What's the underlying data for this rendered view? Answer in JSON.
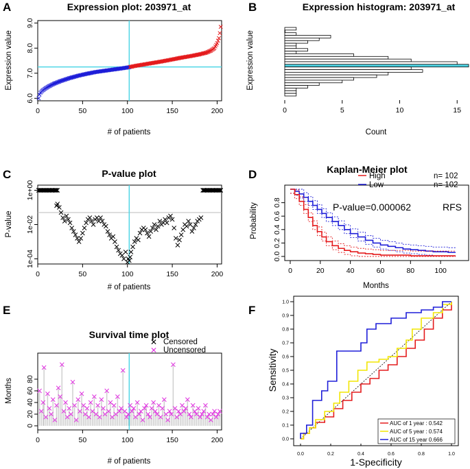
{
  "figure": {
    "panel_labels": [
      "A",
      "B",
      "C",
      "D",
      "E",
      "F"
    ]
  },
  "colors": {
    "cyan": "#4fd6e6",
    "blue": "#1d1dd8",
    "red": "#e41a1c",
    "magenta": "#e033e0",
    "yellow": "#f2e600",
    "gray": "#bbbbbb",
    "hist_fill": "#ffffff"
  },
  "chart_data": [
    {
      "id": "A",
      "type": "scatter",
      "title": "Expression plot:  203971_at",
      "xlabel": "# of patients",
      "ylabel": "Expression value",
      "xlim": [
        0,
        205
      ],
      "ylim": [
        5.9,
        9.1
      ],
      "xticks": [
        0,
        50,
        100,
        150,
        200
      ],
      "yticks": [
        6.0,
        7.0,
        8.0,
        9.0
      ],
      "ytick_labels": [
        "6.0",
        "7.0",
        "8.0",
        "9.0"
      ],
      "n_patients": 204,
      "cutoff_patient": 102,
      "cutoff_value": 7.25,
      "series": [
        {
          "name": "Low",
          "color": "blue",
          "x": [
            1,
            2,
            3,
            5,
            8,
            12,
            18,
            25,
            35,
            45,
            55,
            65,
            75,
            85,
            95,
            102
          ],
          "y": [
            6.0,
            6.15,
            6.22,
            6.3,
            6.38,
            6.47,
            6.58,
            6.68,
            6.8,
            6.9,
            6.98,
            7.05,
            7.1,
            7.15,
            7.2,
            7.24
          ]
        },
        {
          "name": "High",
          "color": "red",
          "x": [
            103,
            110,
            120,
            130,
            140,
            150,
            160,
            170,
            180,
            188,
            193,
            197,
            200,
            202,
            203,
            204
          ],
          "y": [
            7.25,
            7.3,
            7.36,
            7.42,
            7.48,
            7.55,
            7.62,
            7.68,
            7.75,
            7.82,
            7.9,
            8.0,
            8.2,
            8.4,
            8.6,
            8.85
          ]
        }
      ]
    },
    {
      "id": "B",
      "type": "bar",
      "orientation": "horizontal",
      "title": "Expression histogram:  203971_at",
      "xlabel": "Count",
      "ylabel": "Expression value",
      "xlim": [
        0,
        16
      ],
      "xticks": [
        0,
        5,
        10,
        15
      ],
      "bin_counts": [
        1,
        0,
        1,
        4,
        3,
        2,
        1,
        1,
        2,
        1,
        6,
        9,
        11,
        15,
        16,
        11,
        12,
        9,
        8,
        6,
        5,
        3,
        2,
        1,
        1,
        1
      ],
      "highlight_bin": 14,
      "highlight_color": "cyan"
    },
    {
      "id": "C",
      "type": "scatter",
      "title": "P-value plot",
      "xlabel": "# of patients",
      "ylabel": "P-value",
      "xlim": [
        0,
        205
      ],
      "ylim_log10": [
        -4.3,
        0.3
      ],
      "xticks": [
        0,
        50,
        100,
        150,
        200
      ],
      "ytick_labels": [
        "1e-04",
        "1e-02",
        "1e+00"
      ],
      "ytick_log10": [
        -4,
        -2,
        0
      ],
      "significance_line_log10": -1.3,
      "cutoff_patient": 102,
      "points_x": [
        1,
        4,
        8,
        12,
        16,
        20,
        21,
        22,
        24,
        26,
        28,
        30,
        32,
        34,
        36,
        38,
        40,
        42,
        44,
        46,
        48,
        50,
        52,
        54,
        56,
        58,
        60,
        62,
        64,
        66,
        68,
        70,
        72,
        74,
        76,
        78,
        80,
        82,
        84,
        86,
        88,
        90,
        92,
        94,
        96,
        98,
        100,
        101,
        102,
        103,
        104,
        106,
        108,
        110,
        112,
        114,
        116,
        118,
        120,
        122,
        124,
        126,
        128,
        130,
        132,
        134,
        136,
        138,
        140,
        142,
        144,
        146,
        148,
        150,
        152,
        154,
        156,
        158,
        160,
        162,
        164,
        166,
        168,
        170,
        172,
        174,
        176,
        178,
        180,
        182,
        185,
        190,
        195,
        200,
        204
      ],
      "points_log10": [
        0,
        0,
        0,
        0,
        0,
        0,
        -0.9,
        -0.8,
        -1.0,
        -1.3,
        -1.6,
        -1.8,
        -1.5,
        -1.7,
        -1.9,
        -2.2,
        -2.4,
        -2.6,
        -2.8,
        -3.0,
        -2.8,
        -2.5,
        -2.2,
        -1.9,
        -1.7,
        -1.6,
        -1.8,
        -2.0,
        -1.7,
        -1.6,
        -1.8,
        -1.6,
        -1.8,
        -2.0,
        -2.1,
        -2.4,
        -2.6,
        -2.8,
        -2.7,
        -3.0,
        -3.3,
        -3.5,
        -3.7,
        -3.8,
        -4.0,
        -3.6,
        -4.2,
        -4.0,
        -4.1,
        -3.9,
        -3.6,
        -3.3,
        -3.0,
        -2.8,
        -2.9,
        -2.5,
        -2.3,
        -2.2,
        -2.3,
        -2.5,
        -2.7,
        -2.4,
        -2.2,
        -2.0,
        -2.3,
        -2.1,
        -1.8,
        -2.0,
        -1.9,
        -1.7,
        -1.9,
        -1.6,
        -1.5,
        -1.7,
        -2.2,
        -2.8,
        -3.2,
        -2.9,
        -2.6,
        -2.3,
        -2.0,
        -2.1,
        -1.8,
        -2.0,
        -2.4,
        -2.2,
        -2.0,
        -1.8,
        -1.7,
        -1.6,
        0,
        0,
        0,
        0,
        0
      ]
    },
    {
      "id": "D",
      "type": "line",
      "title": "Kaplan-Meier plot",
      "xlabel": "Months",
      "ylabel": "Probability",
      "xlim": [
        0,
        115
      ],
      "ylim": [
        0,
        1
      ],
      "xticks": [
        0,
        20,
        40,
        60,
        80,
        100
      ],
      "yticks": [
        0.0,
        0.2,
        0.4,
        0.6,
        0.8
      ],
      "ytick_labels": [
        "0.0",
        "0.2",
        "0.4",
        "0.6",
        "0.8"
      ],
      "annotation": "P-value=0.000062",
      "annotation2": "RFS",
      "legend": [
        {
          "label": "High",
          "n_text": "n= 102",
          "color": "red"
        },
        {
          "label": "Low",
          "n_text": "n= 102",
          "color": "blue"
        }
      ],
      "series": [
        {
          "name": "Low",
          "color": "blue",
          "x": [
            0,
            3,
            6,
            9,
            12,
            15,
            18,
            21,
            24,
            28,
            32,
            36,
            40,
            45,
            50,
            55,
            60,
            65,
            70,
            75,
            80,
            85,
            90,
            95,
            100,
            105,
            110
          ],
          "y": [
            1.0,
            0.97,
            0.93,
            0.88,
            0.82,
            0.76,
            0.7,
            0.64,
            0.58,
            0.52,
            0.46,
            0.4,
            0.34,
            0.29,
            0.24,
            0.2,
            0.17,
            0.15,
            0.13,
            0.11,
            0.1,
            0.09,
            0.08,
            0.07,
            0.07,
            0.06,
            0.06
          ]
        },
        {
          "name": "High",
          "color": "red",
          "x": [
            0,
            3,
            6,
            9,
            12,
            15,
            18,
            21,
            24,
            28,
            32,
            36,
            40,
            45,
            50,
            55,
            60,
            70,
            80,
            90,
            100,
            110
          ],
          "y": [
            1.0,
            0.92,
            0.82,
            0.7,
            0.58,
            0.46,
            0.37,
            0.29,
            0.22,
            0.16,
            0.12,
            0.09,
            0.07,
            0.05,
            0.04,
            0.03,
            0.02,
            0.02,
            0.01,
            0.01,
            0.01,
            0.01
          ]
        }
      ]
    },
    {
      "id": "E",
      "type": "scatter",
      "title": "Survival time plot",
      "xlabel": "# of patients",
      "ylabel": "Months",
      "xlim": [
        0,
        205
      ],
      "ylim": [
        0,
        120
      ],
      "xticks": [
        0,
        50,
        100,
        150,
        200
      ],
      "yticks": [
        0,
        20,
        40,
        60,
        80
      ],
      "legend": [
        {
          "label": "Censored",
          "color": "black"
        },
        {
          "label": "Uncensored",
          "color": "magenta"
        }
      ],
      "cutoff_patient": 102,
      "points_x": [
        2,
        4,
        6,
        7,
        9,
        11,
        13,
        15,
        17,
        19,
        21,
        23,
        25,
        27,
        29,
        31,
        33,
        35,
        37,
        39,
        41,
        43,
        45,
        47,
        49,
        51,
        53,
        55,
        57,
        59,
        61,
        63,
        65,
        67,
        69,
        71,
        73,
        75,
        77,
        79,
        81,
        83,
        85,
        87,
        89,
        91,
        93,
        95,
        97,
        99,
        101,
        103,
        105,
        107,
        109,
        111,
        113,
        115,
        117,
        119,
        121,
        123,
        125,
        127,
        129,
        131,
        133,
        135,
        137,
        139,
        141,
        143,
        145,
        147,
        149,
        151,
        153,
        155,
        157,
        159,
        161,
        163,
        165,
        167,
        169,
        171,
        173,
        175,
        177,
        179,
        181,
        183,
        185,
        187,
        189,
        191,
        193,
        195,
        197,
        199,
        201,
        203
      ],
      "points_y": [
        60,
        25,
        40,
        100,
        15,
        55,
        30,
        20,
        45,
        10,
        35,
        65,
        50,
        105,
        25,
        40,
        15,
        30,
        20,
        75,
        35,
        10,
        45,
        25,
        55,
        35,
        20,
        30,
        15,
        40,
        25,
        50,
        20,
        35,
        15,
        45,
        30,
        20,
        60,
        25,
        40,
        15,
        35,
        20,
        50,
        25,
        30,
        95,
        25,
        15,
        20,
        35,
        25,
        30,
        15,
        40,
        20,
        25,
        10,
        30,
        35,
        20,
        15,
        30,
        40,
        25,
        20,
        35,
        15,
        30,
        45,
        20,
        10,
        25,
        20,
        105,
        30,
        15,
        25,
        20,
        35,
        25,
        30,
        45,
        20,
        15,
        35,
        25,
        20,
        30,
        15,
        20,
        25,
        35,
        15,
        20,
        10,
        20,
        25,
        15,
        20,
        25
      ]
    },
    {
      "id": "F",
      "type": "line",
      "title": "",
      "xlabel": "1-Specificity",
      "ylabel": "Sensitivity",
      "xlim": [
        0,
        1
      ],
      "ylim": [
        0,
        1
      ],
      "xticks": [
        0.0,
        0.2,
        0.4,
        0.6,
        0.8,
        1.0
      ],
      "yticks": [
        0.0,
        0.1,
        0.2,
        0.3,
        0.4,
        0.5,
        0.6,
        0.7,
        0.8,
        0.9,
        1.0
      ],
      "tick_labels": [
        "0.0",
        "0.1",
        "0.2",
        "0.3",
        "0.4",
        "0.5",
        "0.6",
        "0.7",
        "0.8",
        "0.9",
        "1.0"
      ],
      "legend": [
        {
          "label": "AUC of 1 year : 0.542",
          "color": "red"
        },
        {
          "label": "AUC of 5 year : 0.574",
          "color": "yellow"
        },
        {
          "label": "AUC of 15 year 0.666",
          "color": "blue"
        }
      ],
      "series": [
        {
          "name": "AUC of 1 year",
          "color": "red",
          "x": [
            0,
            0.02,
            0.02,
            0.06,
            0.06,
            0.1,
            0.1,
            0.16,
            0.16,
            0.22,
            0.22,
            0.28,
            0.28,
            0.34,
            0.34,
            0.4,
            0.4,
            0.46,
            0.46,
            0.52,
            0.52,
            0.58,
            0.58,
            0.64,
            0.64,
            0.7,
            0.7,
            0.76,
            0.76,
            0.82,
            0.82,
            0.88,
            0.88,
            0.94,
            0.94,
            1.0,
            1.0
          ],
          "y": [
            0,
            0,
            0.04,
            0.04,
            0.08,
            0.08,
            0.12,
            0.12,
            0.16,
            0.16,
            0.22,
            0.22,
            0.28,
            0.28,
            0.34,
            0.34,
            0.4,
            0.4,
            0.44,
            0.44,
            0.5,
            0.5,
            0.54,
            0.54,
            0.6,
            0.6,
            0.66,
            0.66,
            0.72,
            0.72,
            0.8,
            0.8,
            0.88,
            0.88,
            0.94,
            0.94,
            1.0
          ]
        },
        {
          "name": "AUC of 5 year",
          "color": "yellow",
          "x": [
            0,
            0.02,
            0.02,
            0.06,
            0.06,
            0.1,
            0.1,
            0.16,
            0.16,
            0.22,
            0.22,
            0.26,
            0.26,
            0.32,
            0.32,
            0.38,
            0.38,
            0.44,
            0.44,
            0.52,
            0.52,
            0.58,
            0.58,
            0.64,
            0.64,
            0.7,
            0.7,
            0.74,
            0.74,
            0.8,
            0.8,
            0.88,
            0.88,
            0.94,
            0.94,
            1.0,
            1.0
          ],
          "y": [
            0,
            0,
            0.04,
            0.04,
            0.08,
            0.08,
            0.14,
            0.14,
            0.2,
            0.2,
            0.26,
            0.26,
            0.34,
            0.34,
            0.42,
            0.42,
            0.5,
            0.5,
            0.56,
            0.56,
            0.58,
            0.58,
            0.6,
            0.6,
            0.66,
            0.66,
            0.72,
            0.72,
            0.8,
            0.8,
            0.88,
            0.88,
            0.92,
            0.92,
            0.98,
            0.98,
            1.0
          ]
        },
        {
          "name": "AUC of 15 year",
          "color": "blue",
          "x": [
            0,
            0,
            0.04,
            0.04,
            0.08,
            0.08,
            0.14,
            0.14,
            0.18,
            0.18,
            0.24,
            0.24,
            0.4,
            0.4,
            0.44,
            0.44,
            0.5,
            0.5,
            0.6,
            0.6,
            0.7,
            0.7,
            0.8,
            0.8,
            0.88,
            0.88,
            0.94,
            0.94,
            1.0
          ],
          "y": [
            0,
            0.04,
            0.04,
            0.1,
            0.1,
            0.28,
            0.28,
            0.35,
            0.35,
            0.42,
            0.42,
            0.64,
            0.64,
            0.7,
            0.7,
            0.8,
            0.8,
            0.84,
            0.84,
            0.88,
            0.88,
            0.92,
            0.92,
            0.94,
            0.94,
            0.96,
            0.96,
            1.0,
            1.0
          ]
        }
      ]
    }
  ]
}
